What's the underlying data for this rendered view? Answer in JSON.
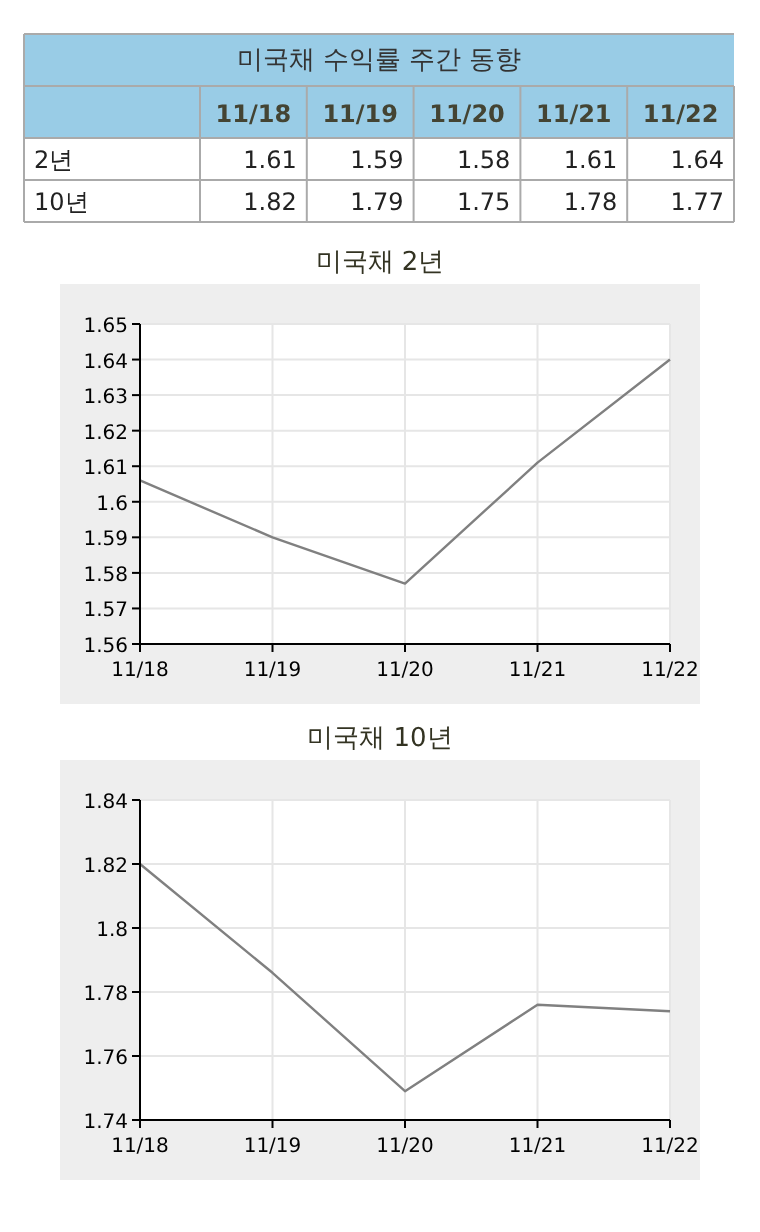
{
  "chart_data": [
    {
      "type": "other",
      "title": "미국채 수익률 주간 동향",
      "categories": [
        "11/18",
        "11/19",
        "11/20",
        "11/21",
        "11/22"
      ],
      "data_labels": true,
      "series": [
        {
          "name": "2년",
          "values": [
            1.61,
            1.59,
            1.58,
            1.61,
            1.64
          ]
        },
        {
          "name": "10년",
          "values": [
            1.82,
            1.79,
            1.75,
            1.78,
            1.77
          ]
        }
      ]
    },
    {
      "type": "line",
      "title": "미국채 2년",
      "categories": [
        "11/18",
        "11/19",
        "11/20",
        "11/21",
        "11/22"
      ],
      "ylim": [
        1.56,
        1.65
      ],
      "yticks": [
        1.56,
        1.57,
        1.58,
        1.59,
        1.6,
        1.61,
        1.62,
        1.63,
        1.64,
        1.65
      ],
      "grid": true,
      "series": [
        {
          "color": "#808080",
          "values": [
            1.606,
            1.59,
            1.577,
            1.611,
            1.64
          ]
        }
      ]
    },
    {
      "type": "line",
      "title": "미국채 10년",
      "categories": [
        "11/18",
        "11/19",
        "11/20",
        "11/21",
        "11/22"
      ],
      "ylim": [
        1.74,
        1.84
      ],
      "yticks": [
        1.74,
        1.76,
        1.78,
        1.8,
        1.82,
        1.84
      ],
      "grid": true,
      "series": [
        {
          "color": "#808080",
          "values": [
            1.82,
            1.786,
            1.749,
            1.776,
            1.774
          ]
        }
      ]
    }
  ]
}
